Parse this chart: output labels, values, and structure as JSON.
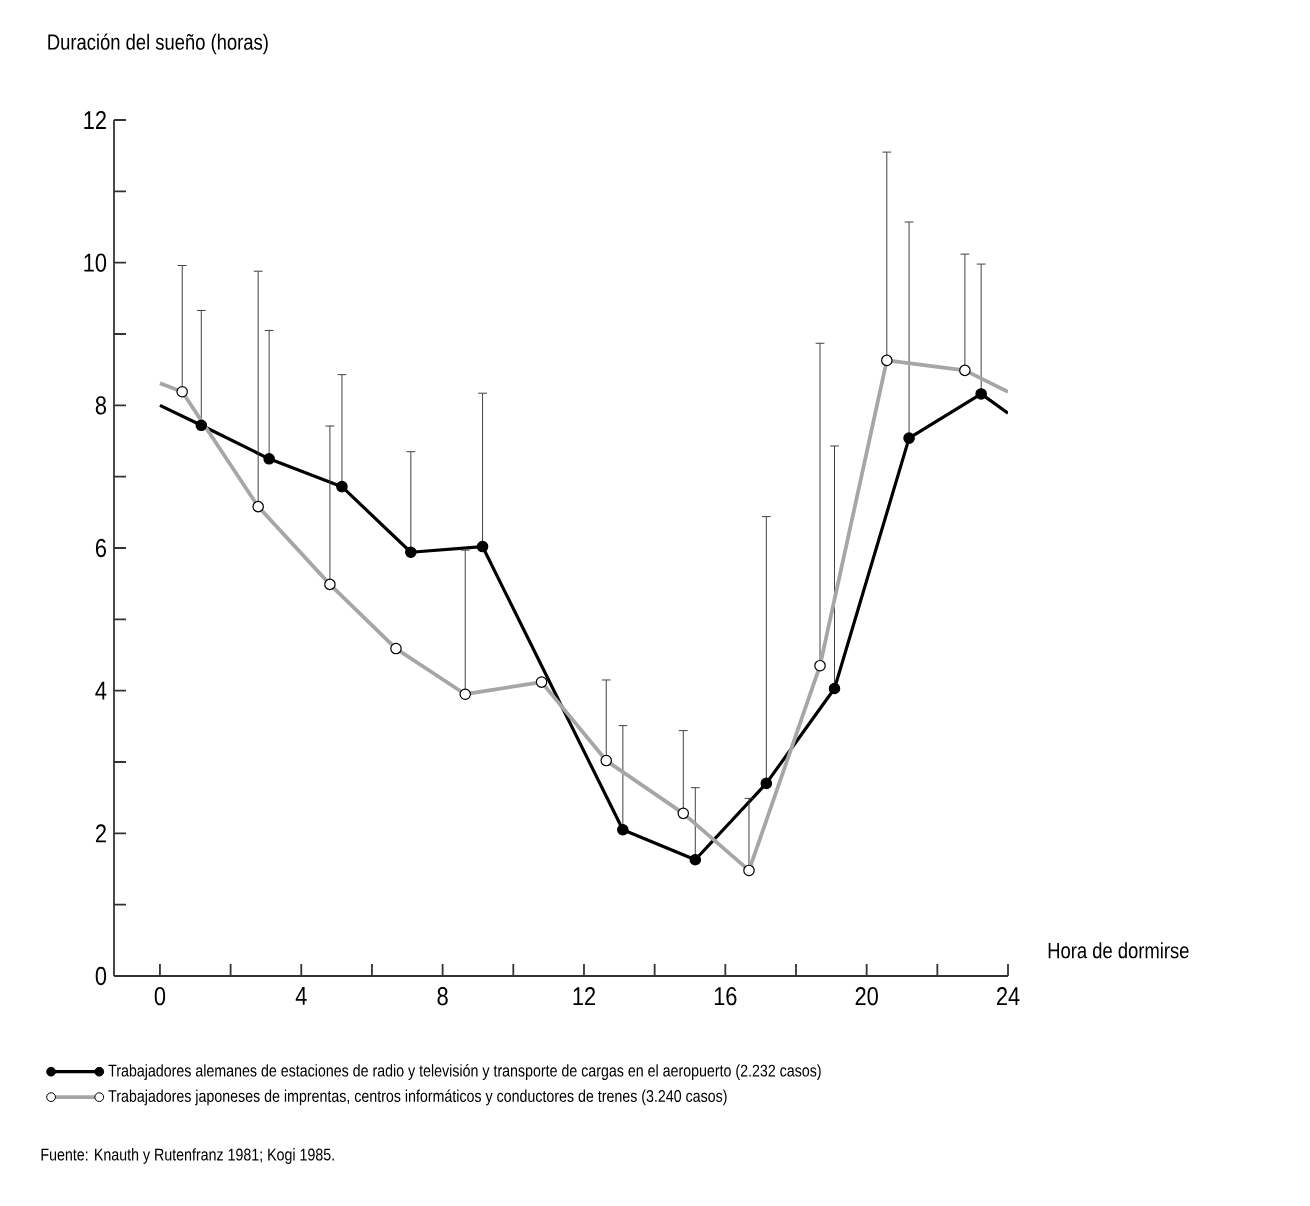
{
  "chart_data": {
    "type": "line",
    "xlabel": "Hora de dormirse",
    "ylabel": "Duración del sueño (horas)",
    "annotations": [
      "Fuente: Knauth y Rutenfranz 1981; Kogi 1985."
    ],
    "xlim": [
      -1.3,
      24
    ],
    "ylim": [
      0,
      12
    ],
    "xticks": [
      0,
      {
        "value": 2,
        "label": null
      },
      4,
      {
        "value": 6,
        "label": null
      },
      8,
      {
        "value": 10,
        "label": null
      },
      12,
      {
        "value": 14,
        "label": null
      },
      16,
      {
        "value": 18,
        "label": null
      },
      20,
      {
        "value": 22,
        "label": null
      },
      24
    ],
    "yticks": [
      0,
      {
        "value": 1,
        "label": null
      },
      2,
      {
        "value": 3,
        "label": null
      },
      4,
      {
        "value": 5,
        "label": null
      },
      6,
      {
        "value": 7,
        "label": null
      },
      8,
      {
        "value": 9,
        "label": null
      },
      10,
      {
        "value": 11,
        "label": null
      },
      12
    ],
    "legend": "bottom",
    "marker": "circle",
    "line_style": "solid",
    "series": [
      {
        "name": "Trabajadores alemanes de estaciones de radio y televisión y transporte de cargas en el aeropuerto (2.232 casos)",
        "color": "#000000",
        "x": [
          0,
          1.17,
          3.09,
          5.15,
          7.1,
          9.13,
          13.1,
          15.15,
          17.16,
          19.09,
          21.2,
          23.24,
          24
        ],
        "values": [
          8.0,
          7.72,
          7.25,
          6.86,
          5.94,
          6.02,
          2.05,
          1.63,
          2.7,
          4.03,
          7.54,
          8.16,
          7.89
        ],
        "errors": [
          null,
          [
            7.72,
            9.33
          ],
          [
            7.25,
            9.05
          ],
          [
            6.86,
            8.43
          ],
          [
            5.94,
            7.35
          ],
          [
            6.02,
            8.17
          ],
          [
            2.05,
            3.51
          ],
          [
            1.63,
            2.64
          ],
          [
            2.7,
            6.44
          ],
          [
            4.03,
            7.43
          ],
          [
            7.54,
            10.57
          ],
          [
            8.16,
            9.98
          ],
          null
        ]
      },
      {
        "name": "Trabajadores japoneses de imprentas, centros informáticos y conductores de trenes (3.240 casos)",
        "color": "#a6a6a6",
        "x": [
          0,
          0.63,
          2.78,
          4.81,
          6.68,
          8.64,
          10.8,
          12.63,
          14.81,
          16.67,
          18.68,
          20.57,
          22.78,
          24
        ],
        "values": [
          8.31,
          8.19,
          6.58,
          5.49,
          4.59,
          3.95,
          4.12,
          3.02,
          2.28,
          1.48,
          4.35,
          8.63,
          8.49,
          8.19
        ],
        "errors": [
          null,
          [
            8.19,
            9.96
          ],
          [
            6.58,
            9.88
          ],
          [
            5.49,
            7.71
          ],
          null,
          [
            3.95,
            5.97
          ],
          null,
          [
            3.02,
            4.15
          ],
          [
            2.28,
            3.44
          ],
          [
            1.48,
            2.49
          ],
          [
            4.35,
            8.87
          ],
          [
            8.63,
            11.55
          ],
          [
            8.49,
            10.12
          ],
          null
        ]
      }
    ]
  }
}
